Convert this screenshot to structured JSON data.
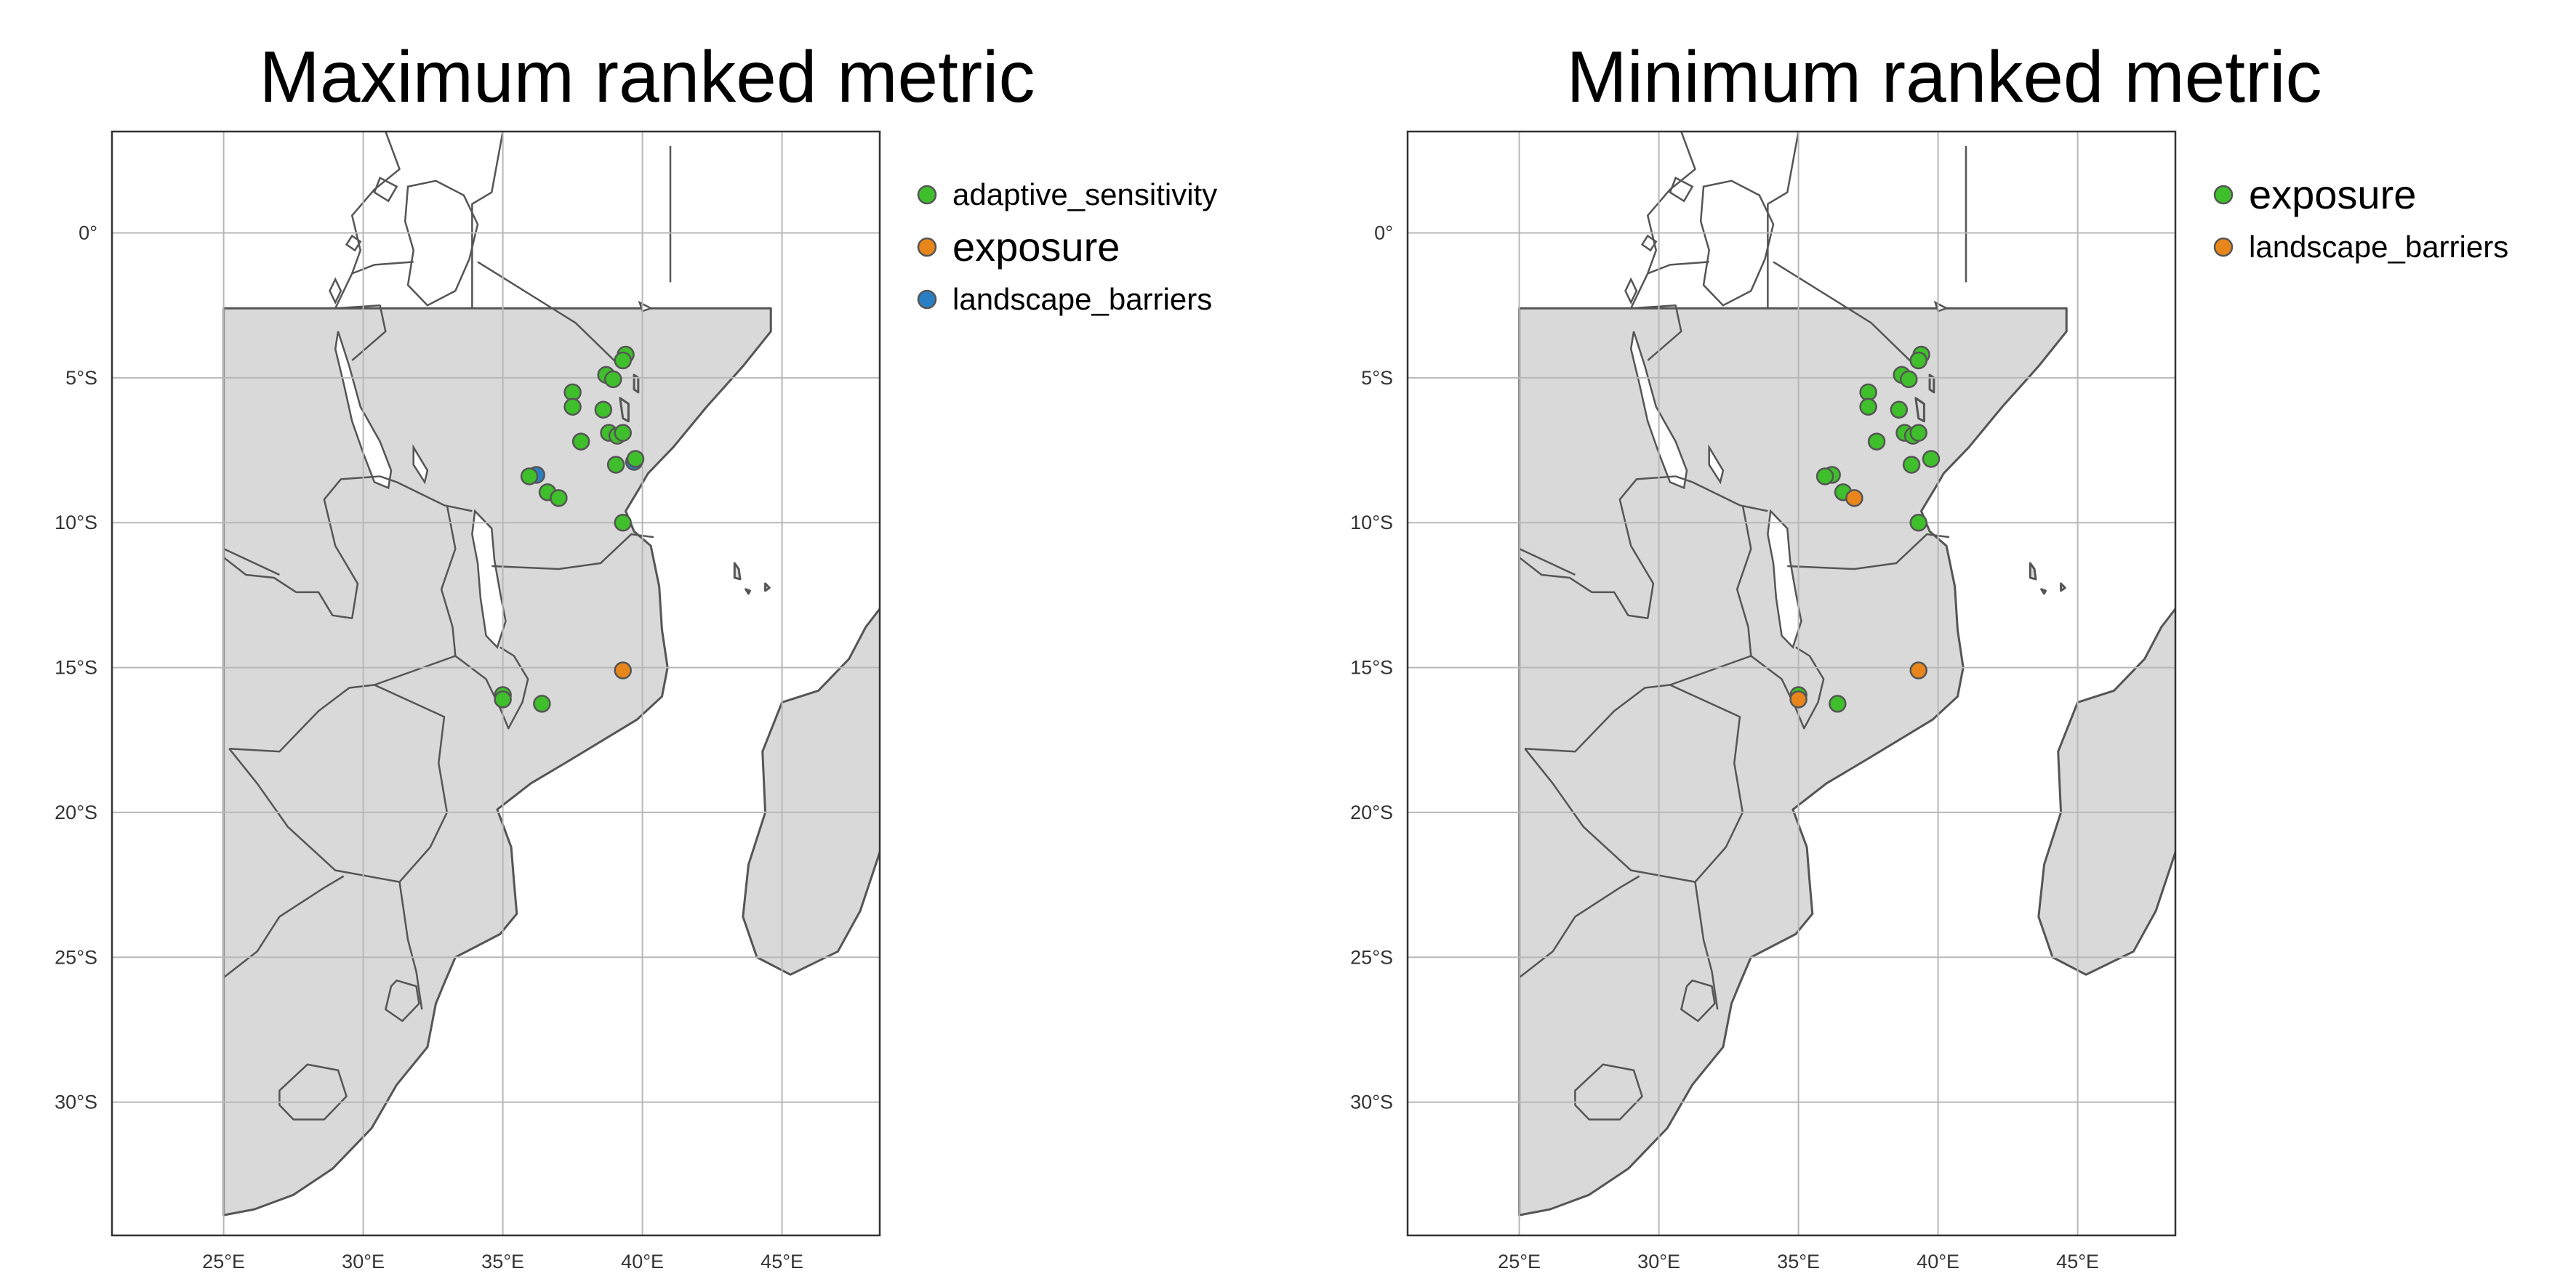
{
  "colors": {
    "adaptive_sensitivity": "#3fbf2b",
    "exposure": "#e8861c",
    "landscape_barriers": "#2a7fc4"
  },
  "axes": {
    "x_range": [
      21,
      48.5
    ],
    "y_range": [
      -34.6,
      3.5
    ],
    "x_ticks": [
      {
        "value": 25,
        "label": "25°E"
      },
      {
        "value": 30,
        "label": "30°E"
      },
      {
        "value": 35,
        "label": "35°E"
      },
      {
        "value": 40,
        "label": "40°E"
      },
      {
        "value": 45,
        "label": "45°E"
      }
    ],
    "y_ticks": [
      {
        "value": 0,
        "label": "0°"
      },
      {
        "value": -5,
        "label": "5°S"
      },
      {
        "value": -10,
        "label": "10°S"
      },
      {
        "value": -15,
        "label": "15°S"
      },
      {
        "value": -20,
        "label": "20°S"
      },
      {
        "value": -25,
        "label": "25°S"
      },
      {
        "value": -30,
        "label": "30°S"
      }
    ]
  },
  "panels": [
    {
      "title": "Maximum ranked metric",
      "legend": [
        {
          "key": "adaptive_sensitivity",
          "label": "adaptive_sensitivity",
          "size": "small"
        },
        {
          "key": "exposure",
          "label": "exposure",
          "size": "large"
        },
        {
          "key": "landscape_barriers",
          "label": "landscape_barriers",
          "size": "small"
        }
      ],
      "points": [
        {
          "lon": 39.4,
          "lat": -4.2,
          "cat": "adaptive_sensitivity"
        },
        {
          "lon": 39.3,
          "lat": -4.4,
          "cat": "adaptive_sensitivity"
        },
        {
          "lon": 38.7,
          "lat": -4.9,
          "cat": "adaptive_sensitivity"
        },
        {
          "lon": 38.95,
          "lat": -5.05,
          "cat": "adaptive_sensitivity"
        },
        {
          "lon": 37.5,
          "lat": -5.5,
          "cat": "adaptive_sensitivity"
        },
        {
          "lon": 37.5,
          "lat": -6.0,
          "cat": "adaptive_sensitivity"
        },
        {
          "lon": 38.6,
          "lat": -6.1,
          "cat": "adaptive_sensitivity"
        },
        {
          "lon": 38.8,
          "lat": -6.9,
          "cat": "adaptive_sensitivity"
        },
        {
          "lon": 39.1,
          "lat": -7.0,
          "cat": "adaptive_sensitivity"
        },
        {
          "lon": 39.3,
          "lat": -6.9,
          "cat": "adaptive_sensitivity"
        },
        {
          "lon": 37.8,
          "lat": -7.2,
          "cat": "adaptive_sensitivity"
        },
        {
          "lon": 39.7,
          "lat": -7.9,
          "cat": "landscape_barriers"
        },
        {
          "lon": 39.75,
          "lat": -7.8,
          "cat": "adaptive_sensitivity"
        },
        {
          "lon": 39.05,
          "lat": -8.0,
          "cat": "adaptive_sensitivity"
        },
        {
          "lon": 36.2,
          "lat": -8.35,
          "cat": "landscape_barriers"
        },
        {
          "lon": 35.95,
          "lat": -8.4,
          "cat": "adaptive_sensitivity"
        },
        {
          "lon": 36.6,
          "lat": -8.95,
          "cat": "adaptive_sensitivity"
        },
        {
          "lon": 37.0,
          "lat": -9.15,
          "cat": "adaptive_sensitivity"
        },
        {
          "lon": 39.3,
          "lat": -10.0,
          "cat": "adaptive_sensitivity"
        },
        {
          "lon": 39.3,
          "lat": -15.1,
          "cat": "exposure"
        },
        {
          "lon": 35.0,
          "lat": -15.95,
          "cat": "adaptive_sensitivity"
        },
        {
          "lon": 35.0,
          "lat": -16.1,
          "cat": "adaptive_sensitivity"
        },
        {
          "lon": 36.4,
          "lat": -16.25,
          "cat": "adaptive_sensitivity"
        }
      ]
    },
    {
      "title": "Minimum ranked metric",
      "legend": [
        {
          "key": "adaptive_sensitivity",
          "label": "exposure",
          "size": "large"
        },
        {
          "key": "exposure",
          "label": "landscape_barriers",
          "size": "small"
        }
      ],
      "points": [
        {
          "lon": 39.4,
          "lat": -4.2,
          "cat": "adaptive_sensitivity"
        },
        {
          "lon": 39.3,
          "lat": -4.4,
          "cat": "adaptive_sensitivity"
        },
        {
          "lon": 38.7,
          "lat": -4.9,
          "cat": "adaptive_sensitivity"
        },
        {
          "lon": 38.95,
          "lat": -5.05,
          "cat": "adaptive_sensitivity"
        },
        {
          "lon": 37.5,
          "lat": -5.5,
          "cat": "adaptive_sensitivity"
        },
        {
          "lon": 37.5,
          "lat": -6.0,
          "cat": "adaptive_sensitivity"
        },
        {
          "lon": 38.6,
          "lat": -6.1,
          "cat": "adaptive_sensitivity"
        },
        {
          "lon": 38.8,
          "lat": -6.9,
          "cat": "adaptive_sensitivity"
        },
        {
          "lon": 39.1,
          "lat": -7.0,
          "cat": "adaptive_sensitivity"
        },
        {
          "lon": 39.3,
          "lat": -6.9,
          "cat": "adaptive_sensitivity"
        },
        {
          "lon": 37.8,
          "lat": -7.2,
          "cat": "adaptive_sensitivity"
        },
        {
          "lon": 39.75,
          "lat": -7.8,
          "cat": "adaptive_sensitivity"
        },
        {
          "lon": 39.05,
          "lat": -8.0,
          "cat": "adaptive_sensitivity"
        },
        {
          "lon": 36.2,
          "lat": -8.35,
          "cat": "adaptive_sensitivity"
        },
        {
          "lon": 35.95,
          "lat": -8.4,
          "cat": "adaptive_sensitivity"
        },
        {
          "lon": 36.6,
          "lat": -8.95,
          "cat": "adaptive_sensitivity"
        },
        {
          "lon": 37.0,
          "lat": -9.15,
          "cat": "exposure"
        },
        {
          "lon": 39.3,
          "lat": -10.0,
          "cat": "adaptive_sensitivity"
        },
        {
          "lon": 39.3,
          "lat": -15.1,
          "cat": "exposure"
        },
        {
          "lon": 35.0,
          "lat": -15.95,
          "cat": "adaptive_sensitivity"
        },
        {
          "lon": 35.0,
          "lat": -16.1,
          "cat": "exposure"
        },
        {
          "lon": 36.4,
          "lat": -16.25,
          "cat": "adaptive_sensitivity"
        }
      ]
    }
  ]
}
